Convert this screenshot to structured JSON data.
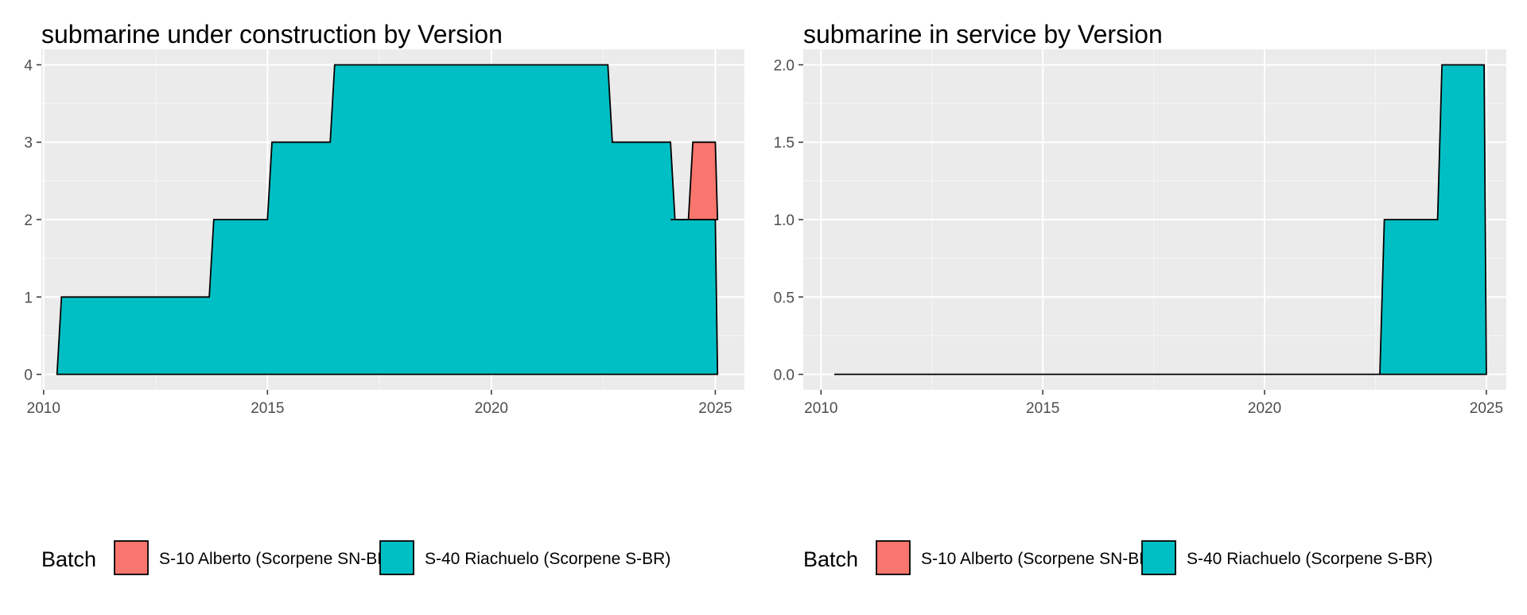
{
  "colors": {
    "panel_bg": "#ebebeb",
    "grid_major": "#ffffff",
    "grid_minor": "#f5f5f5",
    "outline": "#000000",
    "series_a": "#f8766d",
    "series_b": "#00bfc4"
  },
  "legend": {
    "title": "Batch",
    "position": "bottom",
    "items": [
      {
        "label": "S-10 Alberto (Scorpene SN-BR)",
        "color": "#f8766d"
      },
      {
        "label": "S-40 Riachuelo (Scorpene S-BR)",
        "color": "#00bfc4"
      }
    ]
  },
  "chart_data": [
    {
      "type": "area",
      "stacking": "stacked",
      "title": "submarine under construction by Version",
      "xlabel": "",
      "ylabel": "",
      "xlim": [
        2009.95,
        2025.65
      ],
      "ylim": [
        -0.2,
        4.2
      ],
      "xticks": [
        2010,
        2015,
        2020,
        2025
      ],
      "xtick_labels": [
        "2010",
        "2015",
        "2020",
        "2025"
      ],
      "yticks": [
        0,
        1,
        2,
        3,
        4
      ],
      "ytick_labels": [
        "0",
        "1",
        "2",
        "3",
        "4"
      ],
      "grid": true,
      "series": [
        {
          "name": "S-40 Riachuelo (Scorpene S-BR)",
          "color": "#00bfc4",
          "points": [
            [
              2010.3,
              0
            ],
            [
              2010.4,
              1
            ],
            [
              2013.7,
              1
            ],
            [
              2013.8,
              2
            ],
            [
              2015.0,
              2
            ],
            [
              2015.1,
              3
            ],
            [
              2016.4,
              3
            ],
            [
              2016.5,
              4
            ],
            [
              2022.6,
              4
            ],
            [
              2022.7,
              3
            ],
            [
              2024.0,
              3
            ],
            [
              2024.1,
              2
            ],
            [
              2025.0,
              2
            ],
            [
              2025.05,
              0
            ]
          ]
        },
        {
          "name": "S-10 Alberto (Scorpene SN-BR)",
          "color": "#f8766d",
          "points": [
            [
              2024.0,
              2
            ],
            [
              2024.4,
              2
            ],
            [
              2024.5,
              3
            ],
            [
              2025.0,
              3
            ],
            [
              2025.05,
              2
            ]
          ]
        }
      ]
    },
    {
      "type": "area",
      "stacking": "stacked",
      "title": "submarine in service by Version",
      "xlabel": "",
      "ylabel": "",
      "xlim": [
        2009.6,
        2025.45
      ],
      "ylim": [
        -0.1,
        2.1
      ],
      "xticks": [
        2010,
        2015,
        2020,
        2025
      ],
      "xtick_labels": [
        "2010",
        "2015",
        "2020",
        "2025"
      ],
      "yticks": [
        0,
        0.5,
        1.0,
        1.5,
        2.0
      ],
      "ytick_labels": [
        "0.0",
        "0.5",
        "1.0",
        "1.5",
        "2.0"
      ],
      "grid": true,
      "series": [
        {
          "name": "S-40 Riachuelo (Scorpene S-BR)",
          "color": "#00bfc4",
          "points": [
            [
              2010.3,
              0
            ],
            [
              2022.6,
              0
            ],
            [
              2022.7,
              1
            ],
            [
              2023.9,
              1
            ],
            [
              2024.0,
              2
            ],
            [
              2024.95,
              2
            ],
            [
              2025.0,
              0
            ]
          ]
        }
      ]
    }
  ]
}
